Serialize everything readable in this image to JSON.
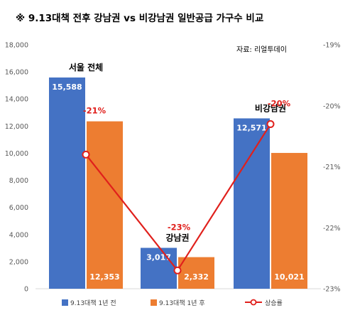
{
  "chart_data": {
    "type": "bar",
    "title": "※ 9.13대책 전후 강남권 vs 비강남권 일반공급 가구수 비교",
    "source": "자료: 리얼투데이",
    "categories": [
      "서울 전체",
      "강남권",
      "비강남권"
    ],
    "series": [
      {
        "name": "9.13대책 1년 전",
        "type": "bar",
        "axis": "left",
        "color": "#4472c4",
        "values": [
          15588,
          3017,
          12571
        ],
        "labels": [
          "15,588",
          "3,017",
          "12,571"
        ]
      },
      {
        "name": "9.13대책 1년 후",
        "type": "bar",
        "axis": "left",
        "color": "#ed7d31",
        "values": [
          12353,
          2332,
          10021
        ],
        "labels": [
          "12,353",
          "2,332",
          "10,021"
        ]
      },
      {
        "name": "상승률",
        "type": "line",
        "axis": "right",
        "color": "#e0201c",
        "values": [
          -20.8,
          -22.7,
          -20.3
        ],
        "labels": [
          "-21%",
          "-23%",
          "-20%"
        ]
      }
    ],
    "y_left": {
      "min": 0,
      "max": 18000,
      "ticks": [
        "0",
        "2,000",
        "4,000",
        "6,000",
        "8,000",
        "10,000",
        "12,000",
        "14,000",
        "16,000",
        "18,000"
      ]
    },
    "y_right": {
      "min": -23,
      "max": -19,
      "ticks": [
        "-19%",
        "-20%",
        "-21%",
        "-22%",
        "-23%"
      ]
    },
    "legend_position": "bottom",
    "grid": false
  }
}
